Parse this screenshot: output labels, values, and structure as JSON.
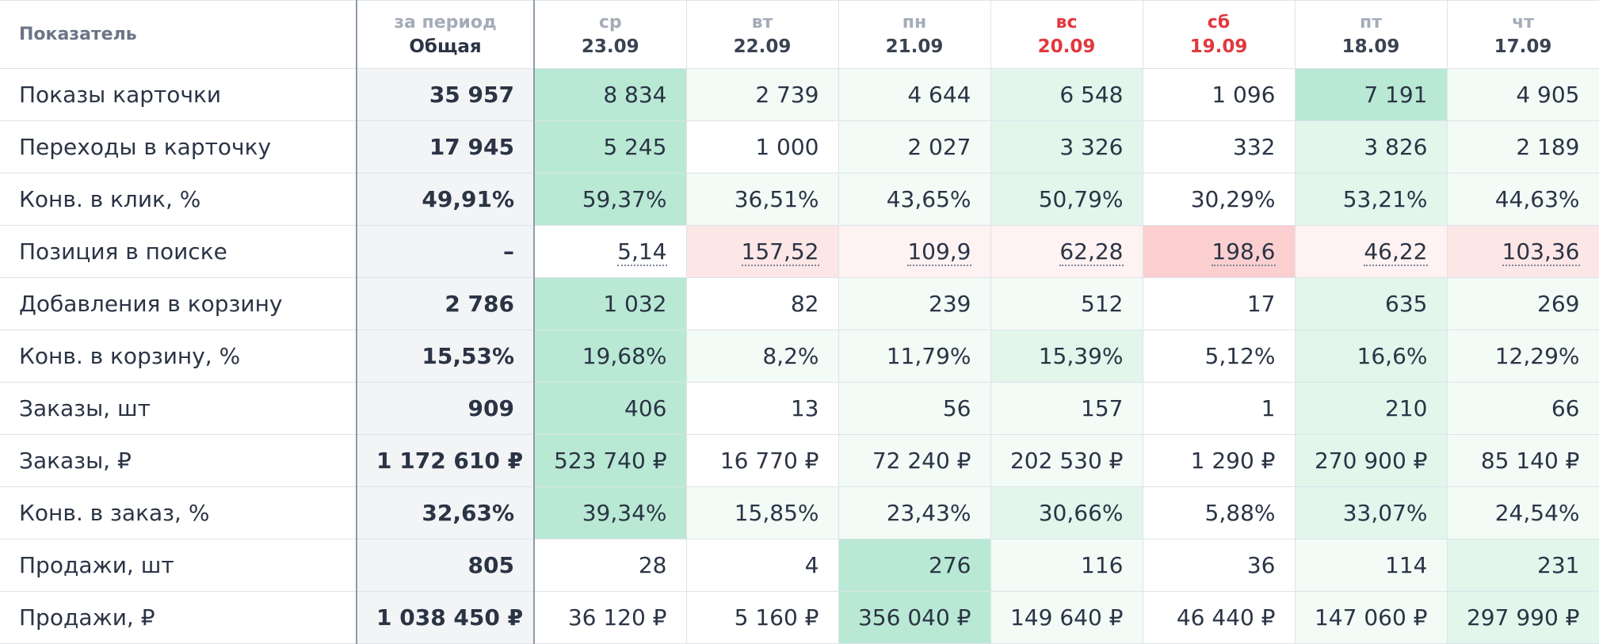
{
  "header": {
    "label": "Показатель",
    "total_dow": "за период",
    "total_label": "Общая"
  },
  "colors": {
    "weekend": "#e2383d",
    "green_levels": [
      "#ffffff",
      "#f2fbf6",
      "#e2f6ec",
      "#b9e9d4"
    ],
    "red_levels": [
      "#ffffff",
      "#fef2f2",
      "#fde6e6",
      "#fbcfd0"
    ]
  },
  "days": [
    {
      "dow": "ср",
      "date": "23.09",
      "weekend": false
    },
    {
      "dow": "вт",
      "date": "22.09",
      "weekend": false
    },
    {
      "dow": "пн",
      "date": "21.09",
      "weekend": false
    },
    {
      "dow": "вс",
      "date": "20.09",
      "weekend": true
    },
    {
      "dow": "сб",
      "date": "19.09",
      "weekend": true
    },
    {
      "dow": "пт",
      "date": "18.09",
      "weekend": false
    },
    {
      "dow": "чт",
      "date": "17.09",
      "weekend": false
    }
  ],
  "rows": [
    {
      "name": "card-views",
      "label": "Показы карточки",
      "total": "35 957",
      "values": [
        "8 834",
        "2 739",
        "4 644",
        "6 548",
        "1 096",
        "7 191",
        "4 905"
      ],
      "shade": "green",
      "levels": [
        3,
        1,
        1,
        2,
        0,
        3,
        1
      ]
    },
    {
      "name": "card-clicks",
      "label": "Переходы в карточку",
      "total": "17 945",
      "values": [
        "5 245",
        "1 000",
        "2 027",
        "3 326",
        "332",
        "3 826",
        "2 189"
      ],
      "shade": "green",
      "levels": [
        3,
        0,
        1,
        2,
        0,
        2,
        1
      ]
    },
    {
      "name": "click-conversion",
      "label": "Конв. в клик, %",
      "total": "49,91%",
      "values": [
        "59,37%",
        "36,51%",
        "43,65%",
        "50,79%",
        "30,29%",
        "53,21%",
        "44,63%"
      ],
      "shade": "green",
      "levels": [
        3,
        1,
        1,
        2,
        0,
        2,
        1
      ]
    },
    {
      "name": "search-position",
      "label": "Позиция в поиске",
      "total": "–",
      "values": [
        "5,14",
        "157,52",
        "109,9",
        "62,28",
        "198,6",
        "46,22",
        "103,36"
      ],
      "shade": "red",
      "levels": [
        0,
        2,
        1,
        1,
        3,
        1,
        2
      ],
      "dotted": true
    },
    {
      "name": "cart-adds",
      "label": "Добавления в корзину",
      "total": "2 786",
      "values": [
        "1 032",
        "82",
        "239",
        "512",
        "17",
        "635",
        "269"
      ],
      "shade": "green",
      "levels": [
        3,
        0,
        1,
        1,
        0,
        2,
        1
      ]
    },
    {
      "name": "cart-conversion",
      "label": "Конв. в корзину, %",
      "total": "15,53%",
      "values": [
        "19,68%",
        "8,2%",
        "11,79%",
        "15,39%",
        "5,12%",
        "16,6%",
        "12,29%"
      ],
      "shade": "green",
      "levels": [
        3,
        1,
        1,
        2,
        0,
        2,
        1
      ]
    },
    {
      "name": "orders-count",
      "label": "Заказы, шт",
      "total": "909",
      "values": [
        "406",
        "13",
        "56",
        "157",
        "1",
        "210",
        "66"
      ],
      "shade": "green",
      "levels": [
        3,
        0,
        1,
        1,
        0,
        2,
        1
      ]
    },
    {
      "name": "orders-rub",
      "label": "Заказы, ₽",
      "total": "1 172 610 ₽",
      "values": [
        "523 740 ₽",
        "16 770 ₽",
        "72 240 ₽",
        "202 530 ₽",
        "1 290 ₽",
        "270 900 ₽",
        "85 140 ₽"
      ],
      "shade": "green",
      "levels": [
        3,
        0,
        1,
        1,
        0,
        2,
        1
      ]
    },
    {
      "name": "order-conversion",
      "label": "Конв. в заказ, %",
      "total": "32,63%",
      "values": [
        "39,34%",
        "15,85%",
        "23,43%",
        "30,66%",
        "5,88%",
        "33,07%",
        "24,54%"
      ],
      "shade": "green",
      "levels": [
        3,
        1,
        1,
        2,
        0,
        2,
        1
      ]
    },
    {
      "name": "sales-count",
      "label": "Продажи, шт",
      "total": "805",
      "values": [
        "28",
        "4",
        "276",
        "116",
        "36",
        "114",
        "231"
      ],
      "shade": "green",
      "levels": [
        0,
        0,
        3,
        1,
        0,
        1,
        2
      ]
    },
    {
      "name": "sales-rub",
      "label": "Продажи, ₽",
      "total": "1 038 450 ₽",
      "values": [
        "36 120 ₽",
        "5 160 ₽",
        "356 040 ₽",
        "149 640 ₽",
        "46 440 ₽",
        "147 060 ₽",
        "297 990 ₽"
      ],
      "shade": "green",
      "levels": [
        0,
        0,
        3,
        1,
        0,
        1,
        2
      ]
    }
  ]
}
